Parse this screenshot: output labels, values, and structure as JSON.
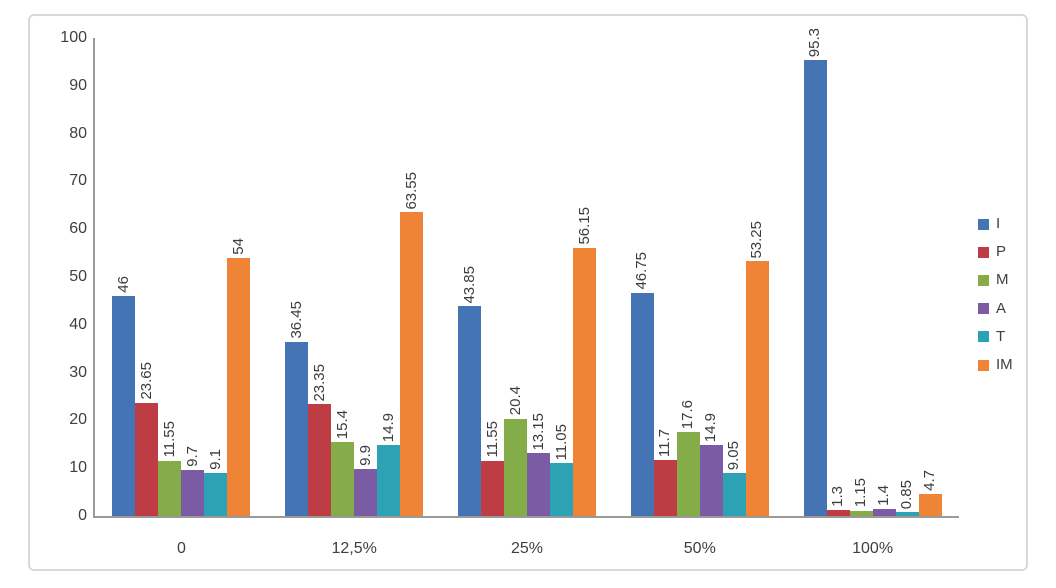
{
  "chart_data": {
    "type": "bar",
    "title": "",
    "xlabel": "",
    "ylabel": "",
    "ylim": [
      0,
      100
    ],
    "yticks": [
      "0",
      "10",
      "20",
      "30",
      "40",
      "50",
      "60",
      "70",
      "80",
      "90",
      "100"
    ],
    "grid": false,
    "legend_position": "right",
    "value_labels_rotated": true,
    "categories": [
      "0",
      "12,5%",
      "25%",
      "50%",
      "100%"
    ],
    "series": [
      {
        "name": "I",
        "color": "#4474B4",
        "values": [
          46,
          36.45,
          43.85,
          46.75,
          95.3
        ],
        "labels": [
          "46",
          "36.45",
          "43.85",
          "46.75",
          "95.3"
        ]
      },
      {
        "name": "P",
        "color": "#BE3C43",
        "values": [
          23.65,
          23.35,
          11.55,
          11.7,
          1.3
        ],
        "labels": [
          "23.65",
          "23.35",
          "11.55",
          "11.7",
          "1.3"
        ]
      },
      {
        "name": "M",
        "color": "#84AC48",
        "values": [
          11.55,
          15.4,
          20.4,
          17.6,
          1.15
        ],
        "labels": [
          "11.55",
          "15.4",
          "20.4",
          "17.6",
          "1.15"
        ]
      },
      {
        "name": "A",
        "color": "#7A5BA4",
        "values": [
          9.7,
          9.9,
          13.15,
          14.9,
          1.4
        ],
        "labels": [
          "9.7",
          "9.9",
          "13.15",
          "14.9",
          "1.4"
        ]
      },
      {
        "name": "T",
        "color": "#2DA2B5",
        "values": [
          9.1,
          14.9,
          11.05,
          9.05,
          0.85
        ],
        "labels": [
          "9.1",
          "14.9",
          "11.05",
          "9.05",
          "0.85"
        ]
      },
      {
        "name": "IM",
        "color": "#EF8436",
        "values": [
          54,
          63.55,
          56.15,
          53.25,
          4.7
        ],
        "labels": [
          "54",
          "63.55",
          "56.15",
          "53.25",
          "4.7"
        ]
      }
    ]
  }
}
